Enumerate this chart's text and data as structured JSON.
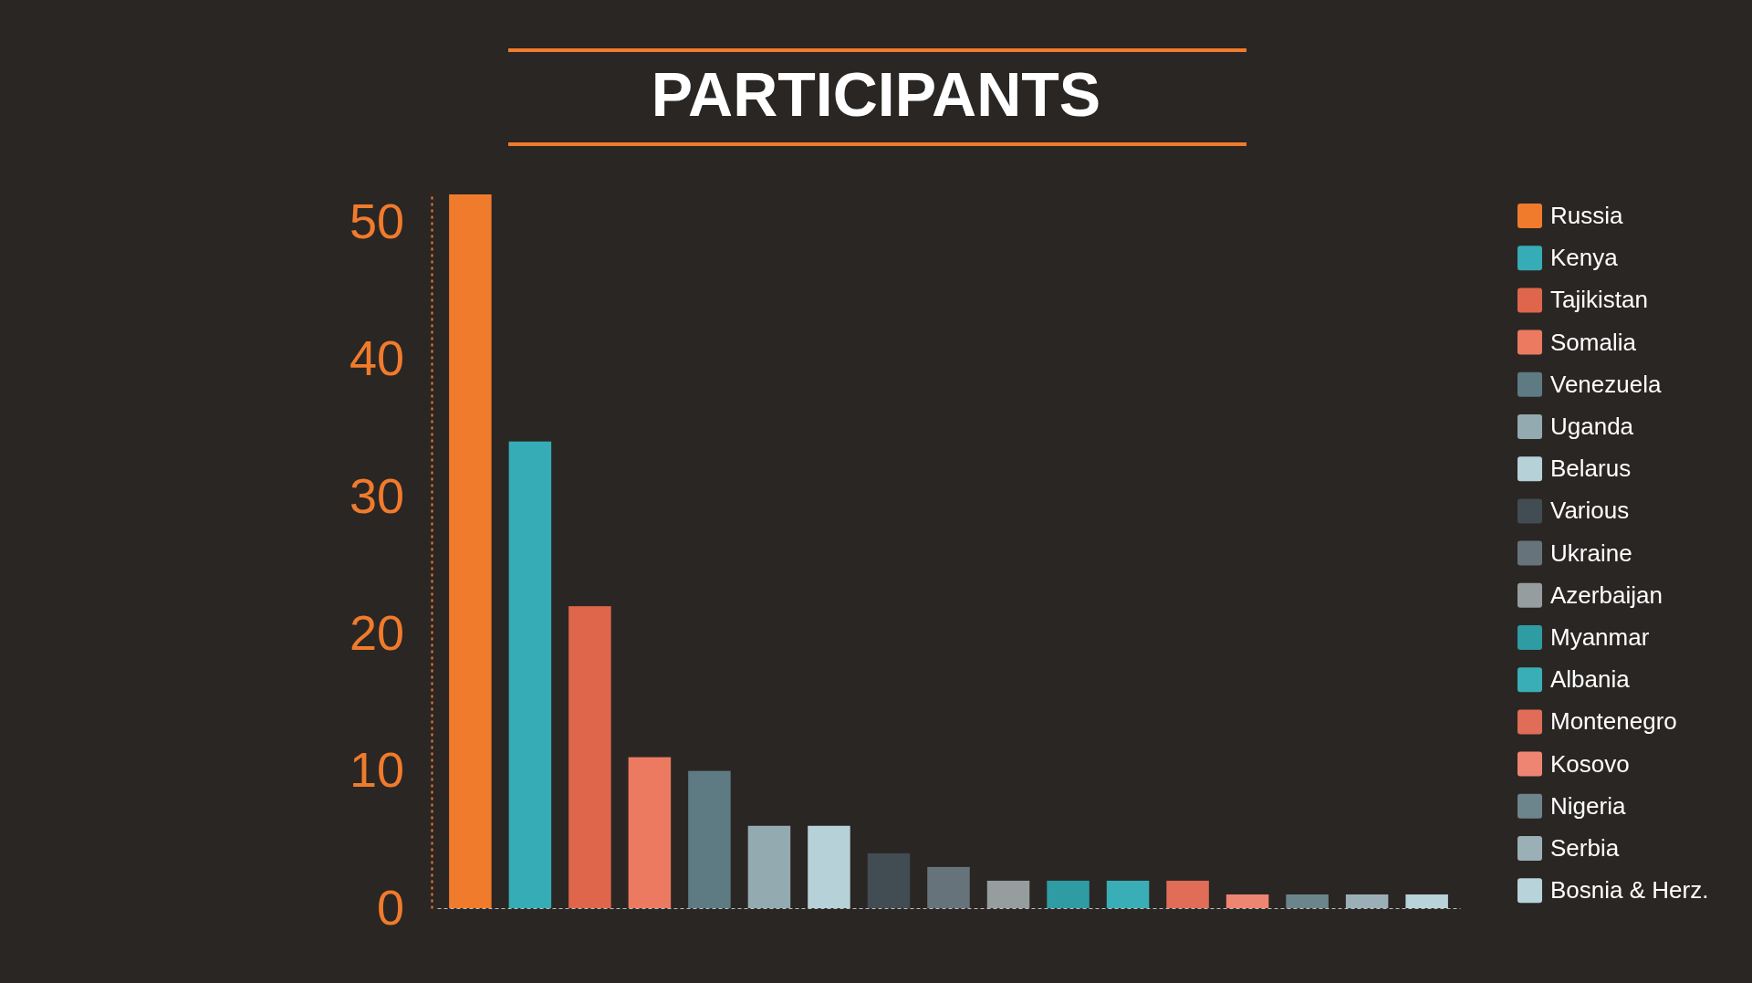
{
  "chart_data": {
    "type": "bar",
    "title": "PARTICIPANTS",
    "categories": [
      null,
      null,
      null,
      null,
      null,
      null,
      null,
      null,
      null,
      null,
      null,
      null,
      null,
      null,
      null,
      null,
      null
    ],
    "series": [
      {
        "name": "Russia",
        "color": "#f07b2c",
        "values": [
          52,
          null,
          null,
          null,
          null,
          null,
          null,
          null,
          null,
          null,
          null,
          null,
          null,
          null,
          null,
          null,
          null
        ]
      },
      {
        "name": "Kenya",
        "color": "#35acb6",
        "values": [
          null,
          34,
          null,
          null,
          null,
          null,
          null,
          null,
          null,
          null,
          null,
          null,
          null,
          null,
          null,
          null,
          null
        ]
      },
      {
        "name": "Tajikistan",
        "color": "#df664b",
        "values": [
          null,
          null,
          22,
          null,
          null,
          null,
          null,
          null,
          null,
          null,
          null,
          null,
          null,
          null,
          null,
          null,
          null
        ]
      },
      {
        "name": "Somalia",
        "color": "#ec7a61",
        "values": [
          null,
          null,
          null,
          11,
          null,
          null,
          null,
          null,
          null,
          null,
          null,
          null,
          null,
          null,
          null,
          null,
          null
        ]
      },
      {
        "name": "Venezuela",
        "color": "#5e7a83",
        "values": [
          null,
          null,
          null,
          null,
          10,
          null,
          null,
          null,
          null,
          null,
          null,
          null,
          null,
          null,
          null,
          null,
          null
        ]
      },
      {
        "name": "Uganda",
        "color": "#93aab1",
        "values": [
          null,
          null,
          null,
          null,
          null,
          6,
          null,
          null,
          null,
          null,
          null,
          null,
          null,
          null,
          null,
          null,
          null
        ]
      },
      {
        "name": "Belarus",
        "color": "#b6d1d8",
        "values": [
          null,
          null,
          null,
          null,
          null,
          null,
          6,
          null,
          null,
          null,
          null,
          null,
          null,
          null,
          null,
          null,
          null
        ]
      },
      {
        "name": "Various",
        "color": "#414c53",
        "values": [
          null,
          null,
          null,
          null,
          null,
          null,
          null,
          4,
          null,
          null,
          null,
          null,
          null,
          null,
          null,
          null,
          null
        ]
      },
      {
        "name": "Ukraine",
        "color": "#67737a",
        "values": [
          null,
          null,
          null,
          null,
          null,
          null,
          null,
          null,
          3,
          null,
          null,
          null,
          null,
          null,
          null,
          null,
          null
        ]
      },
      {
        "name": "Azerbaijan",
        "color": "#959d9e",
        "values": [
          null,
          null,
          null,
          null,
          null,
          null,
          null,
          null,
          null,
          2,
          null,
          null,
          null,
          null,
          null,
          null,
          null
        ]
      },
      {
        "name": "Myanmar",
        "color": "#2f9ba2",
        "values": [
          null,
          null,
          null,
          null,
          null,
          null,
          null,
          null,
          null,
          null,
          2,
          null,
          null,
          null,
          null,
          null,
          null
        ]
      },
      {
        "name": "Albania",
        "color": "#3aaeb6",
        "values": [
          null,
          null,
          null,
          null,
          null,
          null,
          null,
          null,
          null,
          null,
          null,
          2,
          null,
          null,
          null,
          null,
          null
        ]
      },
      {
        "name": "Montenegro",
        "color": "#df6d57",
        "values": [
          null,
          null,
          null,
          null,
          null,
          null,
          null,
          null,
          null,
          null,
          null,
          null,
          2,
          null,
          null,
          null,
          null
        ]
      },
      {
        "name": "Kosovo",
        "color": "#ee8572",
        "values": [
          null,
          null,
          null,
          null,
          null,
          null,
          null,
          null,
          null,
          null,
          null,
          null,
          null,
          1,
          null,
          null,
          null
        ]
      },
      {
        "name": "Nigeria",
        "color": "#6c858c",
        "values": [
          null,
          null,
          null,
          null,
          null,
          null,
          null,
          null,
          null,
          null,
          null,
          null,
          null,
          null,
          1,
          null,
          null
        ]
      },
      {
        "name": "Serbia",
        "color": "#9bb0b6",
        "values": [
          null,
          null,
          null,
          null,
          null,
          null,
          null,
          null,
          null,
          null,
          null,
          null,
          null,
          null,
          null,
          1,
          null
        ]
      },
      {
        "name": "Bosnia & Herz.",
        "color": "#b8d3da",
        "values": [
          null,
          null,
          null,
          null,
          null,
          null,
          null,
          null,
          null,
          null,
          null,
          null,
          null,
          null,
          null,
          null,
          1
        ]
      }
    ],
    "ylim": [
      0,
      52
    ],
    "yticks": [
      0,
      10,
      20,
      30,
      40,
      50
    ],
    "tick_labels": "y",
    "grid": false,
    "legend": "right"
  }
}
